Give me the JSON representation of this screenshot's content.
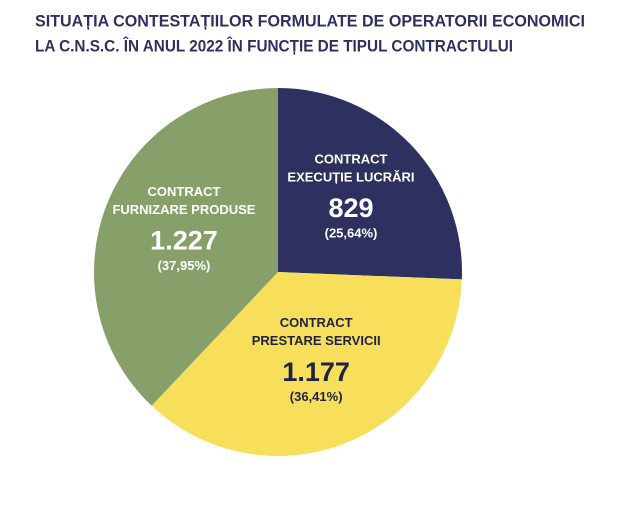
{
  "chart_data": {
    "type": "pie",
    "title": [
      "SITUAȚIA CONTESTAȚIILOR FORMULATE DE OPERATORII ECONOMICI",
      "LA C.N.S.C. ÎN ANUL 2022 ÎN FUNCȚIE DE TIPUL CONTRACTULUI"
    ],
    "categories": [
      [
        "CONTRACT",
        "EXECUȚIE LUCRĂRI"
      ],
      [
        "CONTRACT",
        "PRESTARE SERVICII"
      ],
      [
        "CONTRACT",
        "FURNIZARE PRODUSE"
      ]
    ],
    "values": [
      829,
      1177,
      1227
    ],
    "value_labels": [
      "829",
      "1.177",
      "1.227"
    ],
    "percentages": [
      25.64,
      36.41,
      37.95
    ],
    "percentage_labels": [
      "(25,64%)",
      "(36,41%)",
      "(37,95%)"
    ],
    "colors": [
      "#2e3160",
      "#f7df5c",
      "#87a06a"
    ],
    "label_colors": [
      "#ffffff",
      "#1f2242",
      "#ffffff"
    ]
  }
}
